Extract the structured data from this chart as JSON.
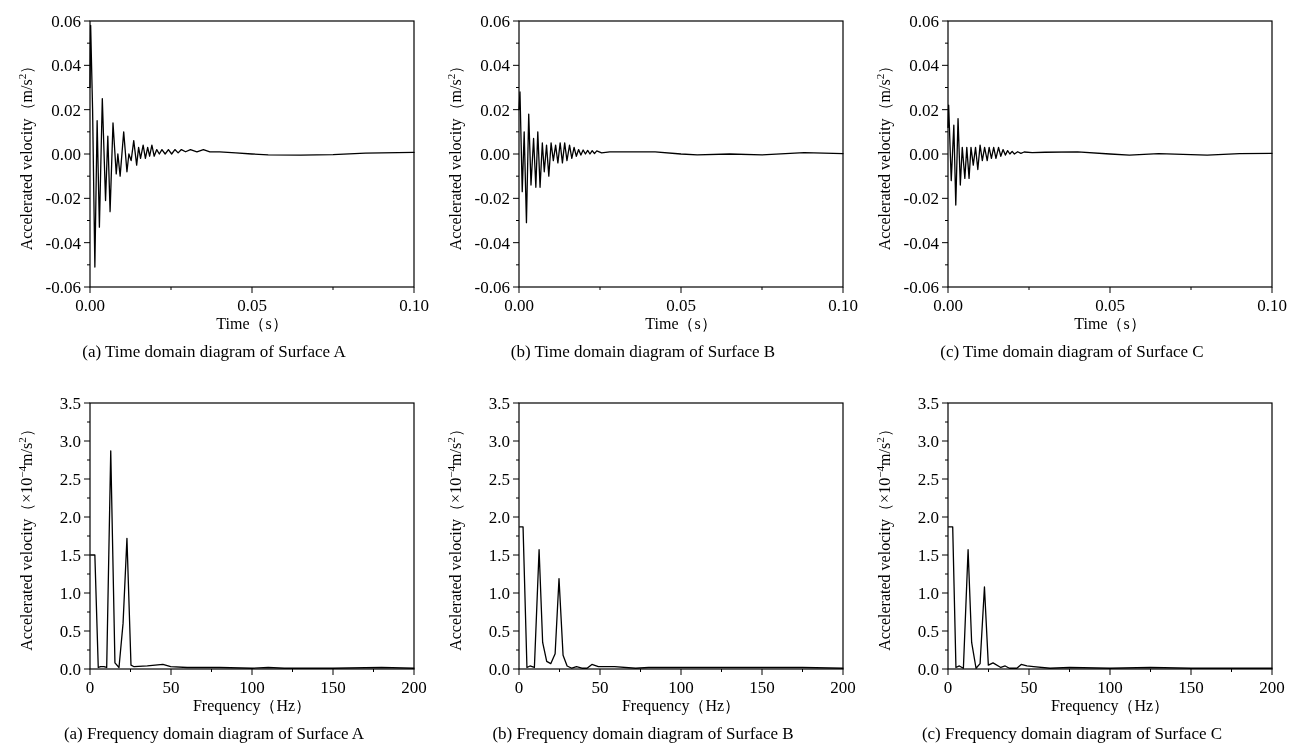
{
  "chart_data": [
    {
      "type": "line",
      "title": "(a) Time domain diagram of Surface A",
      "xlabel": "Time（s）",
      "ylabel": "Accelerated velocity（m/s$^{2}$）",
      "xlim": [
        0,
        0.1
      ],
      "ylim": [
        -0.06,
        0.06
      ],
      "xticks": [
        {
          "value": 0,
          "label": "0.00"
        },
        {
          "value": 0.05,
          "label": "0.05"
        },
        {
          "value": 0.1,
          "label": "0.10"
        }
      ],
      "yticks": [
        {
          "value": -0.06,
          "label": "-0.06"
        },
        {
          "value": -0.04,
          "label": "-0.04"
        },
        {
          "value": -0.02,
          "label": "-0.02"
        },
        {
          "value": 0,
          "label": "0.00"
        },
        {
          "value": 0.02,
          "label": "0.02"
        },
        {
          "value": 0.04,
          "label": "0.04"
        },
        {
          "value": 0.06,
          "label": "0.06"
        }
      ],
      "x": [
        0,
        0.0002,
        0.0008,
        0.0015,
        0.0022,
        0.0029,
        0.0038,
        0.0048,
        0.0055,
        0.0062,
        0.0071,
        0.0081,
        0.0086,
        0.0093,
        0.0104,
        0.0114,
        0.012,
        0.0127,
        0.0135,
        0.0144,
        0.015,
        0.0156,
        0.0164,
        0.0171,
        0.0178,
        0.0184,
        0.0191,
        0.0198,
        0.0206,
        0.0214,
        0.0222,
        0.0232,
        0.0242,
        0.0252,
        0.0262,
        0.0272,
        0.0282,
        0.0295,
        0.031,
        0.033,
        0.035,
        0.037,
        0.04,
        0.045,
        0.05,
        0.055,
        0.065,
        0.075,
        0.085,
        0.1
      ],
      "series": [
        {
          "color": "#000000",
          "values": [
            0.03,
            0.058,
            0.02,
            -0.051,
            0.015,
            -0.033,
            0.025,
            -0.021,
            0.008,
            -0.026,
            0.014,
            -0.009,
            0.0,
            -0.01,
            0.01,
            -0.008,
            0.0,
            -0.003,
            0.006,
            -0.005,
            0.003,
            -0.002,
            0.004,
            -0.002,
            0.003,
            -0.001,
            0.004,
            -0.001,
            0.002,
            0.0,
            0.002,
            0.0,
            0.002,
            0.0,
            0.002,
            0.0005,
            0.002,
            0.001,
            0.002,
            0.001,
            0.002,
            0.001,
            0.001,
            0.0005,
            0.0,
            -0.0004,
            -0.0005,
            -0.0003,
            0.0004,
            0.0007
          ]
        }
      ]
    },
    {
      "type": "line",
      "title": "(b) Time domain diagram of Surface B",
      "xlabel": "Time（s）",
      "ylabel": "Accelerated velocity（m/s$^{2}$）",
      "xlim": [
        0,
        0.1
      ],
      "ylim": [
        -0.06,
        0.06
      ],
      "xticks": [
        {
          "value": 0,
          "label": "0.00"
        },
        {
          "value": 0.05,
          "label": "0.05"
        },
        {
          "value": 0.1,
          "label": "0.10"
        }
      ],
      "yticks": [
        {
          "value": -0.06,
          "label": "-0.06"
        },
        {
          "value": -0.04,
          "label": "-0.04"
        },
        {
          "value": -0.02,
          "label": "-0.02"
        },
        {
          "value": 0,
          "label": "0.00"
        },
        {
          "value": 0.02,
          "label": "0.02"
        },
        {
          "value": 0.04,
          "label": "0.04"
        },
        {
          "value": 0.06,
          "label": "0.06"
        }
      ],
      "x": [
        0,
        0.0003,
        0.001,
        0.0016,
        0.0023,
        0.003,
        0.0037,
        0.0045,
        0.0052,
        0.0058,
        0.0065,
        0.0072,
        0.0078,
        0.0085,
        0.0092,
        0.0099,
        0.0106,
        0.0113,
        0.012,
        0.0127,
        0.0134,
        0.0141,
        0.0148,
        0.0156,
        0.0163,
        0.017,
        0.0177,
        0.0184,
        0.0191,
        0.0198,
        0.0205,
        0.0212,
        0.0219,
        0.0226,
        0.0233,
        0.024,
        0.0255,
        0.028,
        0.035,
        0.042,
        0.05,
        0.055,
        0.065,
        0.075,
        0.088,
        0.1
      ],
      "series": [
        {
          "color": "#000000",
          "values": [
            0.02,
            0.028,
            -0.017,
            0.01,
            -0.031,
            0.018,
            -0.014,
            0.007,
            -0.015,
            0.01,
            -0.015,
            0.005,
            -0.008,
            0.004,
            -0.01,
            0.005,
            -0.003,
            0.004,
            -0.004,
            0.005,
            -0.004,
            0.005,
            -0.003,
            0.004,
            -0.002,
            0.003,
            -0.001,
            0.002,
            -0.0005,
            0.0018,
            0.0,
            0.0016,
            0.0,
            0.0015,
            0.0002,
            0.0014,
            0.0005,
            0.001,
            0.001,
            0.001,
            0.0,
            -0.0004,
            0.0,
            -0.0004,
            0.0006,
            0.0002
          ]
        }
      ]
    },
    {
      "type": "line",
      "title": "(c) Time domain diagram of Surface C",
      "xlabel": "Time（s）",
      "ylabel": "Accelerated velocity（m/s$^{2}$）",
      "xlim": [
        0,
        0.1
      ],
      "ylim": [
        -0.06,
        0.06
      ],
      "xticks": [
        {
          "value": 0,
          "label": "0.00"
        },
        {
          "value": 0.05,
          "label": "0.05"
        },
        {
          "value": 0.1,
          "label": "0.10"
        }
      ],
      "yticks": [
        {
          "value": -0.06,
          "label": "-0.06"
        },
        {
          "value": -0.04,
          "label": "-0.04"
        },
        {
          "value": -0.02,
          "label": "-0.02"
        },
        {
          "value": 0,
          "label": "0.00"
        },
        {
          "value": 0.02,
          "label": "0.02"
        },
        {
          "value": 0.04,
          "label": "0.04"
        },
        {
          "value": 0.06,
          "label": "0.06"
        }
      ],
      "x": [
        0,
        0.0002,
        0.001,
        0.0018,
        0.0024,
        0.0031,
        0.0038,
        0.0044,
        0.0052,
        0.0058,
        0.0065,
        0.0071,
        0.0078,
        0.0085,
        0.0092,
        0.0099,
        0.0106,
        0.0113,
        0.0121,
        0.0127,
        0.0134,
        0.0141,
        0.0148,
        0.0156,
        0.0163,
        0.017,
        0.0177,
        0.0184,
        0.0191,
        0.0198,
        0.0205,
        0.0215,
        0.0225,
        0.0235,
        0.026,
        0.03,
        0.04,
        0.05,
        0.056,
        0.065,
        0.08,
        0.09,
        0.1
      ],
      "series": [
        {
          "color": "#000000",
          "values": [
            0.012,
            0.022,
            -0.012,
            0.013,
            -0.023,
            0.016,
            -0.014,
            0.003,
            -0.011,
            0.003,
            -0.011,
            0.003,
            -0.005,
            0.003,
            -0.007,
            0.004,
            -0.003,
            0.003,
            -0.003,
            0.003,
            -0.002,
            0.003,
            -0.002,
            0.003,
            -0.001,
            0.002,
            -0.0005,
            0.0015,
            0.0,
            0.0012,
            0.0,
            0.001,
            0.0003,
            0.0009,
            0.0006,
            0.0008,
            0.001,
            0.0,
            -0.0005,
            0.0002,
            -0.0005,
            0.0002,
            0.0003
          ]
        }
      ]
    },
    {
      "type": "line",
      "title": "(a) Frequency domain diagram of Surface A",
      "xlabel": "Frequency（Hz）",
      "ylabel": "Accelerated velocity（×10$^{−4}$m/s$^{2}$）",
      "xlim": [
        0,
        200
      ],
      "ylim": [
        0,
        3.5
      ],
      "xticks": [
        0,
        50,
        100,
        150,
        200
      ],
      "yticks": [
        {
          "value": 0,
          "label": "0.0"
        },
        {
          "value": 0.5,
          "label": "0.5"
        },
        {
          "value": 1,
          "label": "1.0"
        },
        {
          "value": 1.5,
          "label": "1.5"
        },
        {
          "value": 2,
          "label": "2.0"
        },
        {
          "value": 2.5,
          "label": "2.5"
        },
        {
          "value": 3,
          "label": "3.0"
        },
        {
          "value": 3.5,
          "label": "3.5"
        }
      ],
      "x": [
        0.4,
        3.0,
        5.1,
        6.6,
        8.6,
        10.3,
        12.8,
        15.4,
        17.9,
        20.4,
        22.8,
        25.3,
        27.2,
        35.4,
        45,
        49.8,
        60,
        68,
        80,
        100,
        110,
        120,
        150,
        180,
        200
      ],
      "series": [
        {
          "color": "#000000",
          "values": [
            1.5,
            1.5,
            0.02,
            0.03,
            0.03,
            0.02,
            2.87,
            0.08,
            0.02,
            0.6,
            1.72,
            0.05,
            0.03,
            0.04,
            0.06,
            0.03,
            0.02,
            0.02,
            0.02,
            0.01,
            0.02,
            0.01,
            0.01,
            0.02,
            0.01
          ]
        }
      ]
    },
    {
      "type": "line",
      "title": "(b) Frequency domain diagram of Surface B",
      "xlabel": "Frequency（Hz）",
      "ylabel": "Accelerated velocity（×10$^{−4}$m/s$^{2}$）",
      "xlim": [
        0,
        200
      ],
      "ylim": [
        0,
        3.5
      ],
      "xticks": [
        0,
        50,
        100,
        150,
        200
      ],
      "yticks": [
        {
          "value": 0,
          "label": "0.0"
        },
        {
          "value": 0.5,
          "label": "0.5"
        },
        {
          "value": 1,
          "label": "1.0"
        },
        {
          "value": 1.5,
          "label": "1.5"
        },
        {
          "value": 2,
          "label": "2.0"
        },
        {
          "value": 2.5,
          "label": "2.5"
        },
        {
          "value": 3,
          "label": "3.0"
        },
        {
          "value": 3.5,
          "label": "3.5"
        }
      ],
      "x": [
        0.4,
        2.5,
        4.9,
        6.8,
        9.5,
        12.4,
        14.6,
        17.1,
        19.6,
        22.3,
        24.7,
        27.2,
        29.7,
        32.6,
        35.5,
        38.8,
        42,
        45,
        49,
        59,
        72,
        80,
        100,
        120,
        150,
        175,
        200
      ],
      "series": [
        {
          "color": "#000000",
          "values": [
            1.87,
            1.87,
            0.02,
            0.04,
            0.02,
            1.57,
            0.35,
            0.1,
            0.07,
            0.2,
            1.19,
            0.18,
            0.04,
            0.01,
            0.03,
            0.01,
            0.01,
            0.06,
            0.03,
            0.03,
            0.01,
            0.02,
            0.02,
            0.02,
            0.02,
            0.02,
            0.01
          ]
        }
      ]
    },
    {
      "type": "line",
      "title": "(c) Frequency domain diagram of Surface C",
      "xlabel": "Frequency（Hz）",
      "ylabel": "Accelerated velocity（×10$^{−4}$m/s$^{2}$）",
      "xlim": [
        0,
        200
      ],
      "ylim": [
        0,
        3.5
      ],
      "xticks": [
        0,
        50,
        100,
        150,
        200
      ],
      "yticks": [
        {
          "value": 0,
          "label": "0.0"
        },
        {
          "value": 0.5,
          "label": "0.5"
        },
        {
          "value": 1,
          "label": "1.0"
        },
        {
          "value": 1.5,
          "label": "1.5"
        },
        {
          "value": 2,
          "label": "2.0"
        },
        {
          "value": 2.5,
          "label": "2.5"
        },
        {
          "value": 3,
          "label": "3.0"
        },
        {
          "value": 3.5,
          "label": "3.5"
        }
      ],
      "x": [
        0.4,
        2.9,
        4.9,
        7.0,
        9.5,
        12.4,
        14.6,
        17.3,
        19.8,
        22.5,
        24.9,
        27.8,
        32.6,
        35.3,
        37.9,
        42.5,
        45.2,
        48.7,
        52.8,
        63,
        75,
        100,
        125,
        150,
        175,
        200
      ],
      "series": [
        {
          "color": "#000000",
          "values": [
            1.87,
            1.87,
            0.02,
            0.04,
            0.01,
            1.57,
            0.35,
            0.01,
            0.07,
            1.08,
            0.05,
            0.08,
            0.02,
            0.04,
            0.01,
            0.01,
            0.06,
            0.04,
            0.03,
            0.01,
            0.02,
            0.01,
            0.02,
            0.01,
            0.01,
            0.01
          ]
        }
      ]
    }
  ]
}
